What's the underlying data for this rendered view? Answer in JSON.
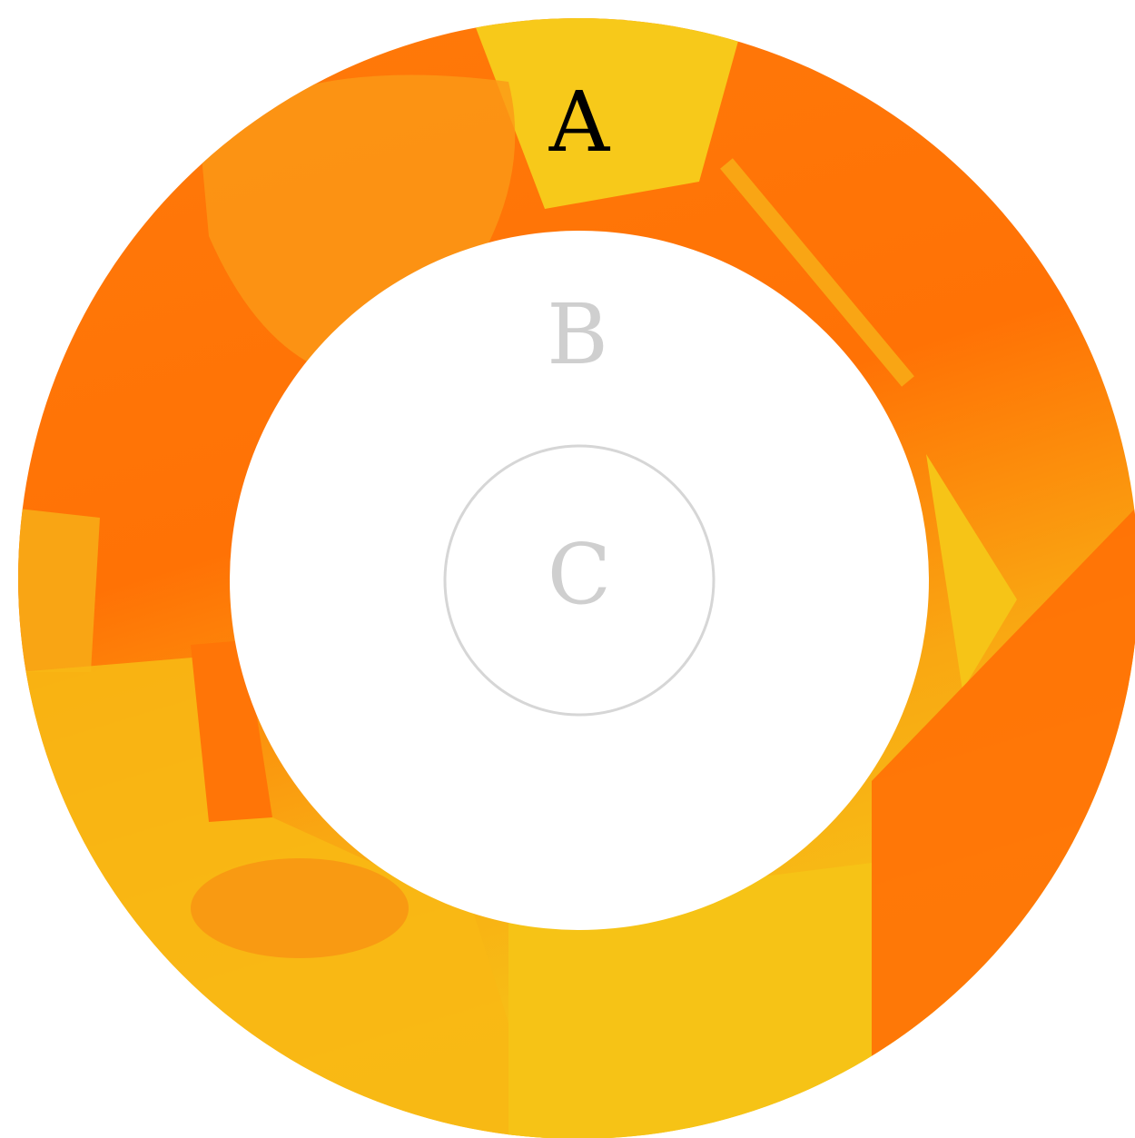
{
  "rings": {
    "outer": {
      "label": "A"
    },
    "middle": {
      "label": "B"
    },
    "inner": {
      "label": "C"
    }
  }
}
